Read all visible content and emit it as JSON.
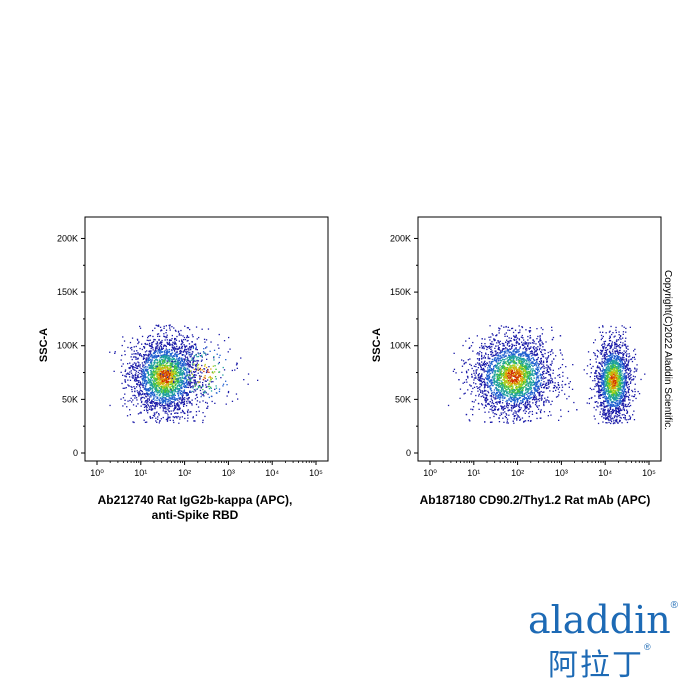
{
  "chart_data": [
    {
      "type": "scatter",
      "ylabel": "SSC-A",
      "xlabel_line1": "Ab212740 Rat IgG2b-kappa (APC),",
      "xlabel_line2": "anti-Spike RBD",
      "x_scale": "log",
      "xlim": [
        1,
        100000
      ],
      "ylim": [
        0,
        220000
      ],
      "x_tick_labels": [
        "10⁰",
        "10¹",
        "10²",
        "10³",
        "10⁴",
        "10⁵"
      ],
      "y_tick_labels": [
        "0",
        "50K",
        "100K",
        "150K",
        "200K"
      ],
      "y_ticks": [
        0,
        50000,
        100000,
        150000,
        200000
      ],
      "populations": [
        {
          "x_center": 35,
          "x_spread_log10": 0.38,
          "y_center": 72000,
          "y_spread": 18000,
          "count": 2600
        },
        {
          "x_center": 250,
          "x_spread_log10": 0.45,
          "y_center": 75000,
          "y_spread": 18000,
          "count": 220
        }
      ],
      "density_colors": [
        "#1a1aa8",
        "#2060d0",
        "#20a0a0",
        "#40c040",
        "#b0d020",
        "#e0a000",
        "#d03000"
      ]
    },
    {
      "type": "scatter",
      "ylabel": "SSC-A",
      "xlabel_line1": "Ab187180 CD90.2/Thy1.2 Rat mAb (APC)",
      "xlabel_line2": "",
      "x_scale": "log",
      "xlim": [
        1,
        100000
      ],
      "ylim": [
        0,
        220000
      ],
      "x_tick_labels": [
        "10⁰",
        "10¹",
        "10²",
        "10³",
        "10⁴",
        "10⁵"
      ],
      "y_tick_labels": [
        "0",
        "50K",
        "100K",
        "150K",
        "200K"
      ],
      "y_ticks": [
        0,
        50000,
        100000,
        150000,
        200000
      ],
      "populations": [
        {
          "x_center": 80,
          "x_spread_log10": 0.45,
          "y_center": 72000,
          "y_spread": 18000,
          "count": 2800
        },
        {
          "x_center": 15000,
          "x_spread_log10": 0.2,
          "y_center": 68000,
          "y_spread": 18000,
          "count": 1800
        }
      ],
      "density_colors": [
        "#1a1aa8",
        "#2060d0",
        "#20a0a0",
        "#40c040",
        "#b0d020",
        "#e0a000",
        "#d03000"
      ]
    }
  ],
  "copyright": "Copyright(C)2022 Aladdin Scientific.",
  "logo": {
    "latin": "aladdin",
    "chinese": "阿拉丁",
    "reg": "®",
    "brand_color": "#1d6ab5"
  }
}
